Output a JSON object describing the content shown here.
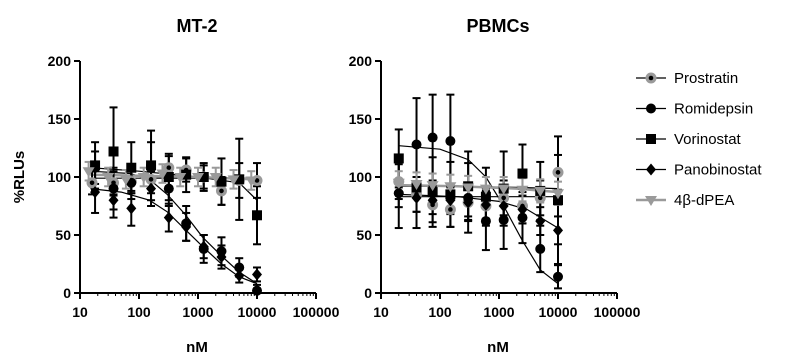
{
  "chart_data": [
    {
      "type": "scatter",
      "title": "MT-2",
      "xlabel": "nM",
      "ylabel": "%RLUs",
      "xscale": "log",
      "xlim": [
        10,
        100000
      ],
      "ylim": [
        0,
        200
      ],
      "xticks": [
        "10",
        "100",
        "1000",
        "10000",
        "100000"
      ],
      "yticks": [
        "0",
        "50",
        "100",
        "150",
        "200"
      ],
      "grid": false,
      "series": [
        {
          "name": "Prostratin",
          "x": [
            16,
            37,
            74,
            160,
            320,
            630,
            1250,
            2500,
            5000,
            10000
          ],
          "y": [
            95,
            95,
            96,
            98,
            108,
            106,
            100,
            88,
            97,
            97
          ],
          "err": [
            10,
            10,
            10,
            12,
            10,
            10,
            10,
            12,
            15,
            15
          ]
        },
        {
          "name": "Romidepsin",
          "x": [
            18,
            37,
            74,
            160,
            320,
            630,
            1250,
            2500,
            5000,
            10000
          ],
          "y": [
            108,
            90,
            95,
            110,
            90,
            60,
            38,
            36,
            22,
            2
          ],
          "err": [
            14,
            18,
            14,
            20,
            15,
            15,
            12,
            12,
            8,
            5
          ]
        },
        {
          "name": "Vorinostat",
          "x": [
            18,
            37,
            74,
            160,
            320,
            630,
            1250,
            2500,
            5000,
            10000
          ],
          "y": [
            110,
            122,
            108,
            110,
            100,
            102,
            100,
            96,
            98,
            67
          ],
          "err": [
            20,
            38,
            22,
            30,
            20,
            15,
            12,
            20,
            35,
            25
          ]
        },
        {
          "name": "Panobinostat",
          "x": [
            18,
            37,
            74,
            160,
            320,
            630,
            1250,
            2500,
            5000,
            10000
          ],
          "y": [
            87,
            80,
            73,
            90,
            65,
            57,
            40,
            31,
            15,
            16
          ],
          "err": [
            18,
            15,
            15,
            15,
            12,
            12,
            10,
            10,
            6,
            6
          ]
        },
        {
          "name": "4β-dPEA",
          "x": [
            14,
            30,
            60,
            120,
            250,
            500,
            1000,
            2000,
            4000,
            8000
          ],
          "y": [
            105,
            100,
            98,
            100,
            103,
            100,
            100,
            100,
            98,
            97
          ],
          "err": [
            8,
            8,
            8,
            8,
            8,
            8,
            8,
            8,
            8,
            8
          ]
        }
      ],
      "fits": [
        {
          "series": "Prostratin",
          "x": [
            15,
            100,
            1000,
            10000
          ],
          "y": [
            99,
            99,
            99,
            99
          ]
        },
        {
          "series": "Romidepsin",
          "x": [
            15,
            70,
            150,
            300,
            600,
            1200,
            2500,
            5000,
            10000
          ],
          "y": [
            105,
            103,
            98,
            85,
            68,
            48,
            32,
            18,
            8
          ]
        },
        {
          "series": "Vorinostat",
          "x": [
            15,
            100,
            1000,
            5000,
            10000
          ],
          "y": [
            108,
            105,
            100,
            95,
            80
          ]
        },
        {
          "series": "Panobinostat",
          "x": [
            15,
            50,
            150,
            300,
            600,
            1200,
            2500,
            5000,
            10000
          ],
          "y": [
            90,
            87,
            80,
            70,
            55,
            40,
            25,
            14,
            8
          ]
        },
        {
          "series": "4β-dPEA",
          "x": [
            15,
            100,
            1000,
            8000
          ],
          "y": [
            102,
            101,
            100,
            98
          ]
        }
      ]
    },
    {
      "type": "scatter",
      "title": "PBMCs",
      "xlabel": "nM",
      "ylabel": "",
      "xscale": "log",
      "xlim": [
        10,
        100000
      ],
      "ylim": [
        0,
        200
      ],
      "xticks": [
        "10",
        "100",
        "1000",
        "10000",
        "100000"
      ],
      "yticks": [
        "0",
        "50",
        "100",
        "150",
        "200"
      ],
      "grid": false,
      "series": [
        {
          "name": "Prostratin",
          "x": [
            20,
            40,
            75,
            150,
            300,
            600,
            1200,
            2500,
            5000,
            10000
          ],
          "y": [
            96,
            85,
            76,
            72,
            78,
            75,
            82,
            75,
            82,
            104
          ],
          "err": [
            15,
            15,
            15,
            15,
            15,
            15,
            15,
            15,
            15,
            15
          ]
        },
        {
          "name": "Romidepsin",
          "x": [
            20,
            40,
            75,
            150,
            300,
            600,
            1200,
            2500,
            5000,
            10000
          ],
          "y": [
            86,
            128,
            134,
            131,
            82,
            62,
            63,
            65,
            38,
            14
          ],
          "err": [
            30,
            40,
            37,
            40,
            30,
            25,
            25,
            22,
            20,
            10
          ]
        },
        {
          "name": "Vorinostat",
          "x": [
            20,
            40,
            75,
            150,
            300,
            600,
            1200,
            2500,
            5000,
            10000
          ],
          "y": [
            116,
            91,
            87,
            85,
            92,
            83,
            90,
            103,
            88,
            80
          ],
          "err": [
            25,
            35,
            30,
            28,
            30,
            25,
            32,
            25,
            25,
            55
          ]
        },
        {
          "name": "Panobinostat",
          "x": [
            20,
            40,
            75,
            150,
            300,
            600,
            1200,
            2500,
            5000,
            10000
          ],
          "y": [
            86,
            82,
            80,
            80,
            78,
            76,
            75,
            72,
            62,
            54
          ],
          "err": [
            12,
            12,
            12,
            12,
            12,
            12,
            12,
            12,
            12,
            12
          ]
        },
        {
          "name": "4β-dPEA",
          "x": [
            20,
            40,
            75,
            150,
            300,
            600,
            1200,
            2500,
            5000,
            10000
          ],
          "y": [
            95,
            94,
            93,
            92,
            91,
            90,
            90,
            89,
            88,
            86
          ],
          "err": [
            10,
            10,
            10,
            10,
            10,
            10,
            10,
            10,
            10,
            10
          ]
        }
      ],
      "fits": [
        {
          "series": "Prostratin",
          "x": [
            20,
            200,
            2000,
            10000
          ],
          "y": [
            83,
            83,
            83,
            83
          ]
        },
        {
          "series": "Romidepsin",
          "x": [
            20,
            100,
            300,
            600,
            1200,
            2500,
            5000,
            10000
          ],
          "y": [
            127,
            124,
            115,
            100,
            75,
            45,
            20,
            8
          ]
        },
        {
          "series": "Vorinostat",
          "x": [
            20,
            200,
            2000,
            10000
          ],
          "y": [
            92,
            92,
            91,
            90
          ]
        },
        {
          "series": "Panobinostat",
          "x": [
            20,
            200,
            1000,
            3000,
            10000
          ],
          "y": [
            85,
            83,
            79,
            72,
            56
          ]
        },
        {
          "series": "4β-dPEA",
          "x": [
            20,
            200,
            2000,
            10000
          ],
          "y": [
            93,
            92,
            90,
            87
          ]
        }
      ]
    }
  ],
  "legend": {
    "placement": "right",
    "items": [
      {
        "label": "Prostratin",
        "marker": "circle-gray",
        "color": "#000000"
      },
      {
        "label": "Romidepsin",
        "marker": "circle",
        "color": "#000000"
      },
      {
        "label": "Vorinostat",
        "marker": "square",
        "color": "#000000"
      },
      {
        "label": "Panobinostat",
        "marker": "diamond",
        "color": "#000000"
      },
      {
        "label": "4β-dPEA",
        "marker": "triangle-down",
        "color": "#9a9a9a"
      }
    ]
  }
}
